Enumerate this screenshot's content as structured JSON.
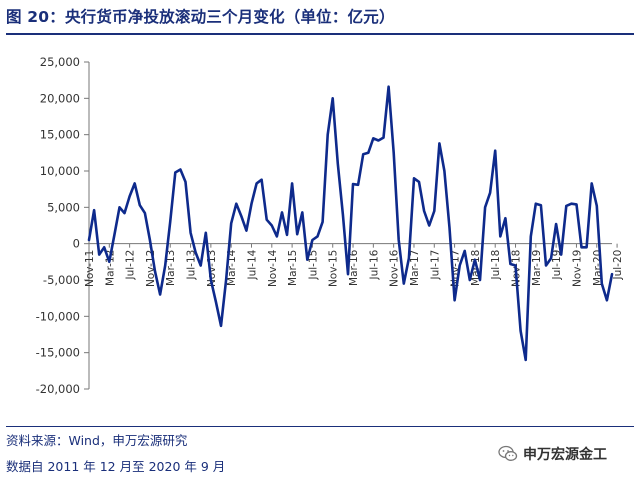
{
  "title": "图 20：央行货币净投放滚动三个月变化（单位：亿元）",
  "footer": {
    "source": "资料来源：Wind，申万宏源研究",
    "note": "数据自 2011 年 12 月至 2020 年 9 月"
  },
  "watermark": {
    "text": "申万宏源金工",
    "icon": "wechat-icon"
  },
  "colors": {
    "line": "#0e2a8c",
    "title": "#1a2f7a",
    "axis": "#777777"
  },
  "chart_data": {
    "type": "line",
    "title": "图 20：央行货币净投放滚动三个月变化（单位：亿元）",
    "xlabel": "",
    "ylabel": "",
    "ylim": [
      -20000,
      25000
    ],
    "grid": false,
    "legend": "none",
    "y_ticks": [
      -20000,
      -15000,
      -10000,
      -5000,
      0,
      5000,
      10000,
      15000,
      20000,
      25000
    ],
    "y_tick_labels": [
      "-20,000",
      "-15,000",
      "-10,000",
      "-5,000",
      "0",
      "5,000",
      "10,000",
      "15,000",
      "20,000",
      "25,000"
    ],
    "x_tick_labels": [
      "Nov-11",
      "Mar-12",
      "Jul-12",
      "Nov-12",
      "Mar-13",
      "Jul-13",
      "Nov-13",
      "Mar-14",
      "Jul-14",
      "Nov-14",
      "Mar-15",
      "Jul-15",
      "Nov-15",
      "Mar-16",
      "Jul-16",
      "Nov-16",
      "Mar-17",
      "Jul-17",
      "Nov-17",
      "Mar-18",
      "Jul-18",
      "Nov-18",
      "Mar-19",
      "Jul-19",
      "Nov-19",
      "Mar-20",
      "Jul-20"
    ],
    "series": [
      {
        "values": [
          500,
          4600,
          -1500,
          -500,
          -2500,
          1200,
          5000,
          4200,
          6500,
          8300,
          5300,
          4200,
          500,
          -3800,
          -7000,
          -3000,
          3000,
          9800,
          10200,
          8500,
          1500,
          -1200,
          -3000,
          1500,
          -5000,
          -8000,
          -11300,
          -5000,
          2800,
          5500,
          3800,
          1800,
          5500,
          8300,
          8800,
          3300,
          2500,
          1000,
          4300,
          1200,
          8300,
          1300,
          4300,
          -2200,
          500,
          1000,
          3000,
          15000,
          20000,
          11000,
          4000,
          -4200,
          8200,
          8100,
          12300,
          12500,
          14500,
          14200,
          14600,
          21600,
          12500,
          500,
          -5500,
          -2000,
          9000,
          8500,
          4500,
          2500,
          4500,
          13800,
          10000,
          2200,
          -7800,
          -3000,
          -1000,
          -5000,
          -2200,
          -5000,
          5000,
          7000,
          12800,
          1000,
          3500,
          -2800,
          -3000,
          -12000,
          -16000,
          1000,
          5500,
          5300,
          -3000,
          -2000,
          2700,
          -1500,
          5200,
          5500,
          5400,
          -500,
          -500,
          8300,
          5200,
          -5500,
          -7800,
          -4200
        ]
      }
    ]
  }
}
